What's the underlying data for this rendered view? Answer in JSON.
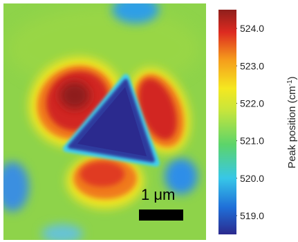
{
  "chart_data": {
    "type": "heatmap",
    "title": "",
    "colorbar": {
      "label_main": "Peak position (cm",
      "label_sup": "-1",
      "label_close": ")",
      "range": [
        518.5,
        524.5
      ],
      "ticks": [
        "524.0",
        "523.0",
        "522.0",
        "521.0",
        "520.0",
        "519.0"
      ],
      "tick_values": [
        524.0,
        523.0,
        522.0,
        521.0,
        520.0,
        519.0
      ],
      "colormap": [
        "#2b2a8e",
        "#1f6fd8",
        "#37c7e8",
        "#5cd46a",
        "#c6e53c",
        "#f5e820",
        "#f59a1c",
        "#dd2a20",
        "#8f1f1c"
      ]
    },
    "map": {
      "background_value": 521.9,
      "features": [
        {
          "name": "central triangle",
          "value": 518.8
        },
        {
          "name": "upper-left lobe",
          "value": 524.2
        },
        {
          "name": "upper-right lobe",
          "value": 523.9
        },
        {
          "name": "bottom lobe",
          "value": 523.3
        },
        {
          "name": "left edge spot",
          "value": 520.1
        },
        {
          "name": "right spot",
          "value": 520.3
        },
        {
          "name": "top spot",
          "value": 520.4
        },
        {
          "name": "lower-left spot",
          "value": 520.6
        }
      ]
    },
    "scale_bar": {
      "label": "1 μm",
      "length": "1 μm"
    }
  }
}
